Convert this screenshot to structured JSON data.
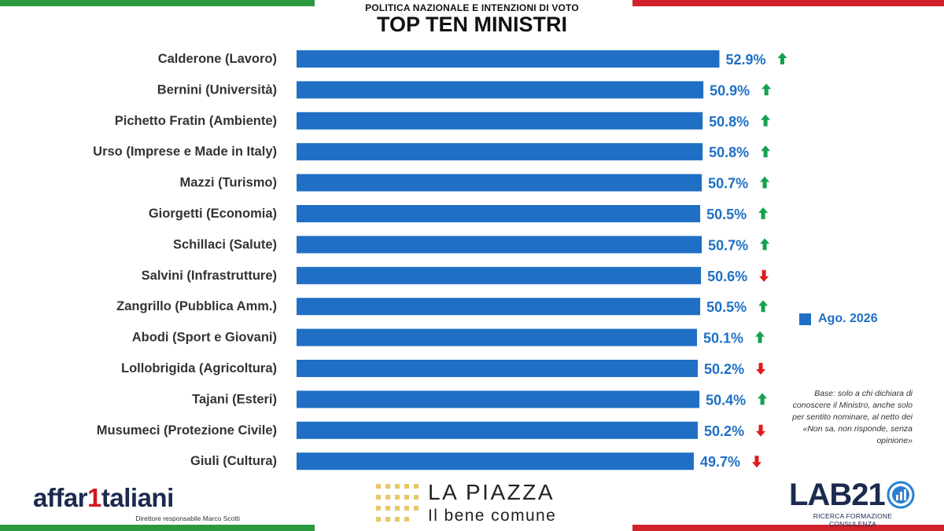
{
  "header": {
    "supertitle": "POLITICA NAZIONALE E INTENZIONI DI VOTO",
    "title": "TOP TEN MINISTRI"
  },
  "colors": {
    "bar": "#1f6fc5",
    "value_label": "#1f6fc5",
    "arrow_up": "#14a150",
    "arrow_down": "#e01b1b",
    "flag_green": "#2b9a3f",
    "flag_red": "#d0222a"
  },
  "legend": {
    "label": "Ago. 2026"
  },
  "note": "Base: solo a chi dichiara di conoscere il Ministro, anche solo per sentito nominare, al netto dei «Non sa, non risponde, senza opinione»",
  "logos": {
    "affaritaliani": {
      "part1": "affar",
      "part2": "1",
      "part3": "taliani",
      "subtitle": "Direttore responsabile Marco Scotti"
    },
    "lapiazza": {
      "title": "LA PIAZZA",
      "subtitle": "Il bene comune"
    },
    "lab21": {
      "text": "LAB21",
      "subtitle": "RICERCA FORMAZIONE CONSULENZA"
    }
  },
  "chart_data": {
    "type": "bar",
    "orientation": "horizontal",
    "title": "TOP TEN MINISTRI",
    "categories": [
      "Calderone (Lavoro)",
      "Bernini (Università)",
      "Pichetto Fratin (Ambiente)",
      "Urso (Imprese e Made in Italy)",
      "Mazzi (Turismo)",
      "Giorgetti (Economia)",
      "Schillaci (Salute)",
      "Salvini (Infrastrutture)",
      "Zangrillo (Pubblica Amm.)",
      "Abodi (Sport e Giovani)",
      "Lollobrigida (Agricoltura)",
      "Tajani (Esteri)",
      "Musumeci (Protezione Civile)",
      "Giuli (Cultura)"
    ],
    "series": [
      {
        "name": "Ago. 2026",
        "values": [
          52.9,
          50.9,
          50.8,
          50.8,
          50.7,
          50.5,
          50.7,
          50.6,
          50.5,
          50.1,
          50.2,
          50.4,
          50.2,
          49.7
        ]
      }
    ],
    "value_labels": [
      "52.9%",
      "50.9%",
      "50.8%",
      "50.8%",
      "50.7%",
      "50.5%",
      "50.7%",
      "50.6%",
      "50.5%",
      "50.1%",
      "50.2%",
      "50.4%",
      "50.2%",
      "49.7%"
    ],
    "trend": [
      "up",
      "up",
      "up",
      "up",
      "up",
      "up",
      "up",
      "down",
      "up",
      "up",
      "down",
      "up",
      "down",
      "down"
    ],
    "unit": "%",
    "grid": false,
    "legend_position": "right"
  }
}
